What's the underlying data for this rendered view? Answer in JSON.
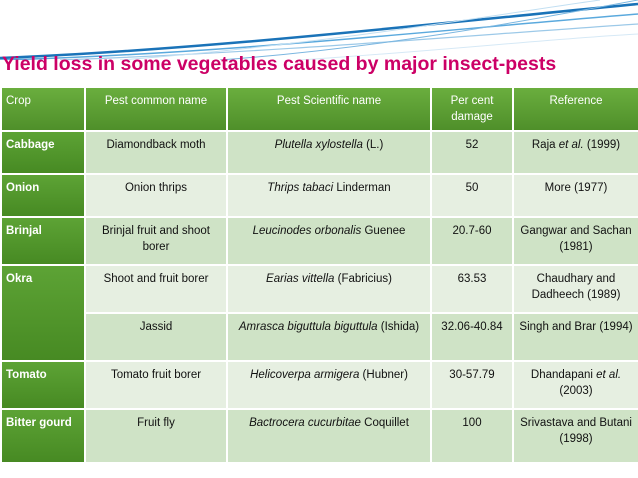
{
  "title": "Yield loss in some vegetables caused by major insect-pests",
  "headers": {
    "crop": "Crop",
    "pest_common": "Pest common name",
    "pest_scientific": "Pest Scientific name",
    "damage": "Per cent damage",
    "reference": "Reference"
  },
  "rows": [
    {
      "crop": "Cabbage",
      "pest_common": "Diamondback moth",
      "sci_italic": "Plutella xylostella",
      "sci_rest": " (L.)",
      "damage": "52",
      "ref_a": "Raja ",
      "ref_italic": "et al.",
      "ref_b": " (1999)"
    },
    {
      "crop": "Onion",
      "pest_common": "Onion thrips",
      "sci_italic": "Thrips tabaci",
      "sci_rest": " Linderman",
      "damage": " 50",
      "ref_a": "More (1977)",
      "ref_italic": "",
      "ref_b": ""
    },
    {
      "crop": "Brinjal",
      "pest_common": "Brinjal fruit and shoot borer",
      "sci_italic": "Leucinodes orbonalis",
      "sci_rest": " Guenee",
      "damage": "20.7-60",
      "ref_a": "Gangwar and Sachan (1981)",
      "ref_italic": "",
      "ref_b": ""
    },
    {
      "crop": "Okra",
      "pest_common": "Shoot and fruit borer",
      "sci_italic": "Earias vittella",
      "sci_rest": " (Fabricius)",
      "damage": "63.53",
      "ref_a": "Chaudhary and Dadheech (1989)",
      "ref_italic": "",
      "ref_b": ""
    },
    {
      "crop": "",
      "pest_common": "Jassid",
      "sci_italic": "Amrasca biguttula biguttula",
      "sci_rest": " (Ishida)",
      "damage": "32.06-40.84",
      "ref_a": "Singh and Brar (1994)",
      "ref_italic": "",
      "ref_b": ""
    },
    {
      "crop": "Tomato",
      "pest_common": "Tomato fruit borer",
      "sci_italic": "Helicoverpa armigera",
      "sci_rest": " (Hubner)",
      "damage": "30-57.79",
      "ref_a": "Dhandapani ",
      "ref_italic": "et al.",
      "ref_b": " (2003)"
    },
    {
      "crop": "Bitter gourd",
      "pest_common": "Fruit fly",
      "sci_italic": "Bactrocera cucurbitae",
      "sci_rest": " Coquillet",
      "damage": "100",
      "ref_a": "Srivastava and Butani (1998)",
      "ref_italic": "",
      "ref_b": ""
    }
  ],
  "colors": {
    "title": "#cc0066",
    "header_green": "#5a9a33",
    "cell_light": "#cfe3c6",
    "cell_lighter": "#e6efe1",
    "highlight_value": "#1f5fbf",
    "wave_blue": "#2e86c1"
  }
}
